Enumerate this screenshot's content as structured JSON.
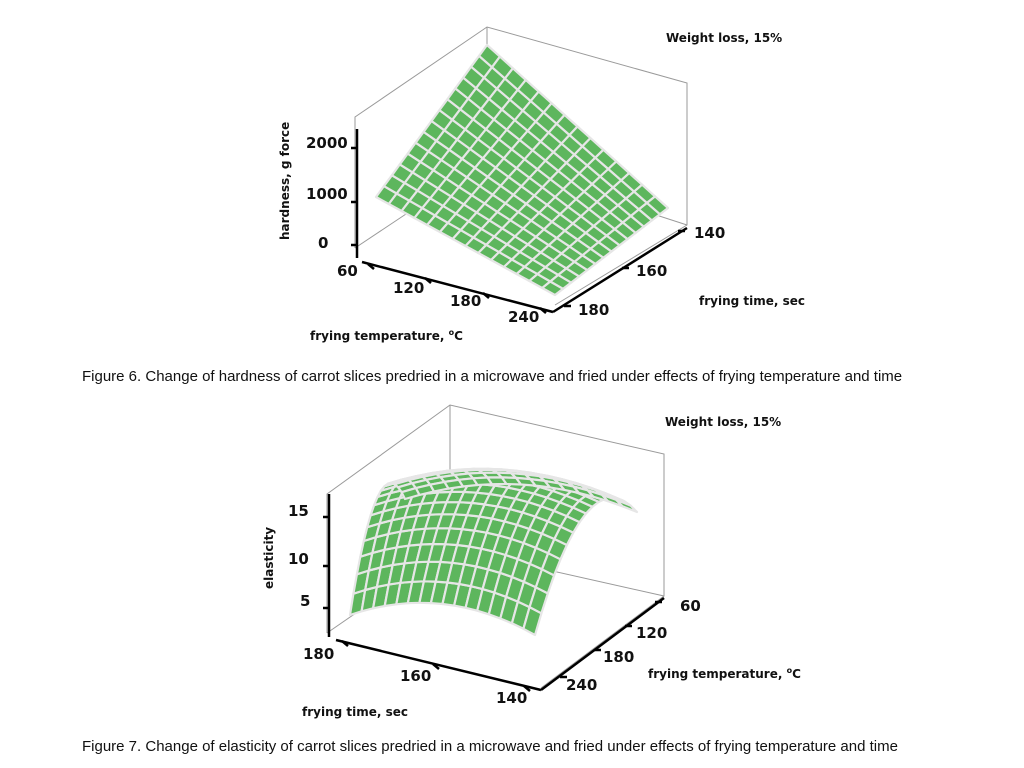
{
  "chart_data": [
    {
      "type": "surface3d",
      "annotation": "Weight loss, 15%",
      "zlabel": "hardness, g force",
      "z_ticks": [
        "2000",
        "1000",
        "0"
      ],
      "xlabel": "frying temperature, ",
      "xlabel_sup": "o",
      "xlabel_unit": "C",
      "x_ticks": [
        "60",
        "120",
        "180",
        "240"
      ],
      "ylabel": "frying time, sec",
      "y_ticks": [
        "140",
        "160",
        "180"
      ],
      "surface_corners": {
        "temp_60_time_140": 2600,
        "temp_60_time_180": 1000,
        "temp_240_time_140": 300,
        "temp_240_time_180": 0
      },
      "surface_color": "#5db65d",
      "caption": "Figure 6. Change of hardness of carrot slices predried in a microwave and fried under effects of frying temperature and time"
    },
    {
      "type": "surface3d",
      "annotation": "Weight loss, 15%",
      "zlabel": "elasticity",
      "z_ticks": [
        "15",
        "10",
        "5"
      ],
      "xlabel": "frying time, sec",
      "x_ticks": [
        "180",
        "160",
        "140"
      ],
      "ylabel": "frying temperature, ",
      "ylabel_sup": "o",
      "ylabel_unit": "C",
      "y_ticks": [
        "60",
        "120",
        "180",
        "240"
      ],
      "surface_peak": 15,
      "surface_color": "#5db65d",
      "caption": "Figure 7. Change of elasticity of carrot slices predried in a microwave and fried under effects of frying temperature and time"
    }
  ]
}
